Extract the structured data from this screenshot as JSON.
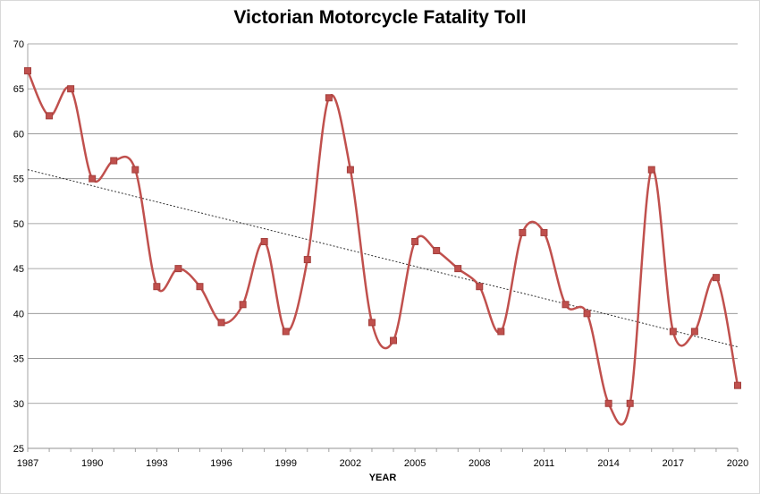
{
  "chart_data": {
    "type": "line",
    "title": "Victorian Motorcycle Fatality Toll",
    "xlabel": "YEAR",
    "ylabel": "",
    "x": [
      1987,
      1988,
      1989,
      1990,
      1991,
      1992,
      1993,
      1994,
      1995,
      1996,
      1997,
      1998,
      1999,
      2000,
      2001,
      2002,
      2003,
      2004,
      2005,
      2006,
      2007,
      2008,
      2009,
      2010,
      2011,
      2012,
      2013,
      2014,
      2015,
      2016,
      2017,
      2018,
      2019,
      2020
    ],
    "series": [
      {
        "values": [
          67,
          62,
          65,
          55,
          57,
          56,
          43,
          45,
          43,
          39,
          41,
          48,
          38,
          46,
          64,
          56,
          39,
          37,
          48,
          47,
          45,
          43,
          38,
          49,
          49,
          41,
          40,
          30,
          30,
          56,
          38,
          38,
          44,
          32
        ]
      }
    ],
    "trendline": {
      "type": "linear",
      "style": "dotted"
    },
    "x_ticks": [
      "1987",
      "1990",
      "1993",
      "1996",
      "1999",
      "2002",
      "2005",
      "2008",
      "2011",
      "2014",
      "2017",
      "2020"
    ],
    "y_ticks": [
      "25",
      "30",
      "35",
      "40",
      "45",
      "50",
      "55",
      "60",
      "65",
      "70"
    ],
    "xlim": [
      1987,
      2020
    ],
    "ylim": [
      25,
      70
    ],
    "grid": true,
    "smoothed": true,
    "marker": "square",
    "colors": {
      "line": "#c0504d",
      "marker_fill": "#c0504d",
      "marker_stroke": "#a33f3c",
      "grid": "#8c8c8c",
      "trend": "#333333"
    }
  }
}
